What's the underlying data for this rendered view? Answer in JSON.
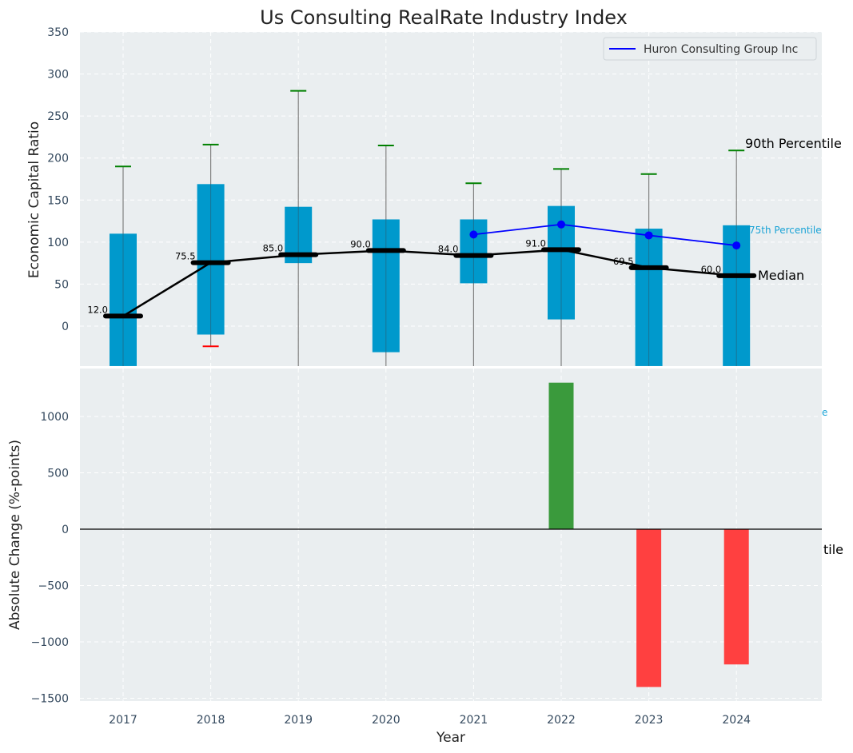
{
  "chart_data": [
    {
      "type": "box",
      "panel": "top",
      "title": "Us Consulting RealRate Industry Index",
      "ylabel": "Economic Capital Ratio",
      "xlabel": "",
      "ylim": [
        -47.5,
        350
      ],
      "yticks": [
        0,
        50,
        100,
        150,
        200,
        250,
        300,
        350
      ],
      "grid": true,
      "categories": [
        "2017",
        "2018",
        "2019",
        "2020",
        "2021",
        "2022",
        "2023",
        "2024"
      ],
      "boxes": [
        {
          "year": "2017",
          "q75": 110,
          "q25": -47.5,
          "median": 12.0,
          "p90": 190,
          "p10": null
        },
        {
          "year": "2018",
          "q75": 169,
          "q25": -10,
          "median": 75.5,
          "p90": 216,
          "p10": -24
        },
        {
          "year": "2019",
          "q75": 142,
          "q25": 75,
          "median": 85.0,
          "p90": 280,
          "p10": null
        },
        {
          "year": "2020",
          "q75": 127,
          "q25": -31,
          "median": 90.0,
          "p90": 215,
          "p10": null
        },
        {
          "year": "2021",
          "q75": 127,
          "q25": 51,
          "median": 84.0,
          "p90": 170,
          "p10": null
        },
        {
          "year": "2022",
          "q75": 143,
          "q25": 8,
          "median": 91.0,
          "p90": 187,
          "p10": null
        },
        {
          "year": "2023",
          "q75": 116,
          "q25": -47.5,
          "median": 69.5,
          "p90": 181,
          "p10": null
        },
        {
          "year": "2024",
          "q75": 120,
          "q25": -47.5,
          "median": 60.0,
          "p90": 209,
          "p10": null
        }
      ],
      "median_labels": [
        "12.0",
        "75.5",
        "85.0",
        "90.0",
        "84.0",
        "91.0",
        "69.5",
        "60.0"
      ],
      "series": [
        {
          "name": "Huron Consulting Group Inc",
          "color": "#0000ff",
          "x": [
            "2021",
            "2022",
            "2023",
            "2024"
          ],
          "values": [
            109,
            121,
            108,
            96
          ]
        }
      ],
      "legend": {
        "position": "top-right",
        "entries": [
          "Huron Consulting Group Inc"
        ]
      },
      "annotations": {
        "p90": "90th Percentile",
        "p75": "75th Percentile",
        "median": "Median"
      },
      "colors": {
        "box": "#0099cc",
        "median": "#000000",
        "whisker": "#808080",
        "upper_cap": "#008000",
        "lower_cap": "#ff0000",
        "background": "#eaeef0"
      }
    },
    {
      "type": "bar",
      "panel": "bottom",
      "ylabel": "Absolute Change (%-points)",
      "xlabel": "Year",
      "ylim": [
        -1525,
        1430
      ],
      "yticks": [
        -1500,
        -1000,
        -500,
        0,
        500,
        1000
      ],
      "ytick_labels": [
        "−1500",
        "−1000",
        "−500",
        "0",
        "500",
        "1000"
      ],
      "grid": true,
      "categories": [
        "2017",
        "2018",
        "2019",
        "2020",
        "2021",
        "2022",
        "2023",
        "2024"
      ],
      "values": [
        0,
        0,
        0,
        0,
        0,
        1300,
        -1400,
        -1200
      ],
      "colors": {
        "positive": "#3a9a3c",
        "negative": "#ff4040"
      },
      "clipped_annotations": {
        "p75_fragment": "e",
        "p10_fragment": "tile"
      }
    }
  ]
}
